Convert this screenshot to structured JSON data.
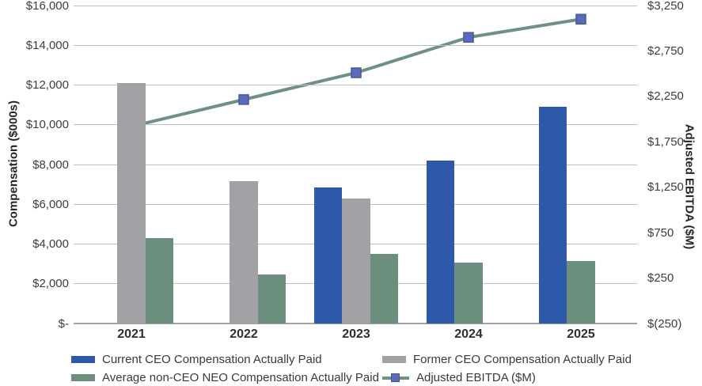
{
  "chart_data": {
    "type": "bar",
    "subtype": "clustered-bar-with-line-combo",
    "categories": [
      "2021",
      "2022",
      "2023",
      "2024",
      "2025"
    ],
    "bar_series": [
      {
        "key": "current-ceo",
        "name": "Current CEO Compensation Actually Paid",
        "color": "#2e59ab",
        "values": [
          null,
          null,
          6850,
          8200,
          10900
        ],
        "slots": [
          null,
          null,
          0,
          0,
          0
        ]
      },
      {
        "key": "former-ceo",
        "name": "Former CEO Compensation Actually Paid",
        "color": "#a1a2a6",
        "values": [
          12100,
          7150,
          6300,
          null,
          null
        ],
        "slots": [
          1,
          1,
          1,
          null,
          null
        ]
      },
      {
        "key": "avg-non-ceo-neo",
        "name": "Average non-CEO NEO Compensation Actually Paid",
        "color": "#6c8f7d",
        "values": [
          4300,
          2450,
          3500,
          3050,
          3150
        ],
        "slots": [
          2,
          2,
          2,
          1,
          1
        ]
      }
    ],
    "line_series": {
      "key": "adjusted-ebitda",
      "name": "Adjusted EBITDA ($M)",
      "color": "#6e9182",
      "marker_color": "#5b6bbb",
      "marker_border_color": "#46579f",
      "values": [
        1920,
        2215,
        2510,
        2900,
        3100
      ],
      "axis": "right"
    },
    "left_axis": {
      "title": "Compensation ($000s)",
      "ticks": [
        "$16,000",
        "$14,000",
        "$12,000",
        "$10,000",
        "$8,000",
        "$6,000",
        "$4,000",
        "$2,000",
        "$-"
      ],
      "min": 0,
      "max": 16000
    },
    "right_axis": {
      "title": "Adjusted EBITDA ($M)",
      "ticks": [
        "$3,250",
        "$2,750",
        "$2,250",
        "$1,750",
        "$1,250",
        "$750",
        "$250",
        "$(250)"
      ],
      "min": -250,
      "max": 3250
    },
    "grid": "horizontal",
    "legend_position": "bottom"
  },
  "colors": {
    "gridline": "#bfbfbf",
    "axis_line": "#a3a3a3",
    "background": "#ffffff"
  }
}
